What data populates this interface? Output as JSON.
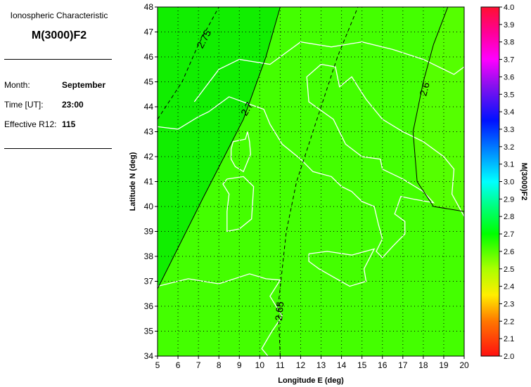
{
  "panel": {
    "caption": "Ionospheric Characteristic",
    "parameter": "M(3000)F2",
    "fields": [
      {
        "label": "Month:",
        "value": "September"
      },
      {
        "label": "Time [UT]:",
        "value": "23:00"
      },
      {
        "label": "Effective R12:",
        "value": "115"
      }
    ]
  },
  "chart_data": {
    "type": "heatmap",
    "xlabel": "Longitude E (deg)",
    "ylabel": "Latitude N (deg)",
    "xlim": [
      5,
      20
    ],
    "ylim": [
      34,
      48
    ],
    "xticks": [
      "5",
      "6",
      "7",
      "8",
      "9",
      "10",
      "11",
      "12",
      "13",
      "14",
      "15",
      "16",
      "17",
      "18",
      "19",
      "20"
    ],
    "yticks": [
      "34",
      "35",
      "36",
      "37",
      "38",
      "39",
      "40",
      "41",
      "42",
      "43",
      "44",
      "45",
      "46",
      "47",
      "48"
    ],
    "grid": true,
    "colorbar": {
      "label": "M(3000)F2",
      "range": [
        2.0,
        4.0
      ],
      "ticks": [
        "2.0",
        "2.1",
        "2.2",
        "2.3",
        "2.4",
        "2.5",
        "2.6",
        "2.7",
        "2.8",
        "2.9",
        "3.0",
        "3.1",
        "3.2",
        "3.3",
        "3.4",
        "3.5",
        "3.6",
        "3.7",
        "3.8",
        "3.9",
        "4.0"
      ],
      "stops": [
        [
          2.0,
          "#ff1010"
        ],
        [
          2.2,
          "#ff7700"
        ],
        [
          2.35,
          "#ffee00"
        ],
        [
          2.5,
          "#aaff00"
        ],
        [
          2.7,
          "#00ff00"
        ],
        [
          2.85,
          "#00ff77"
        ],
        [
          3.0,
          "#00ffff"
        ],
        [
          3.15,
          "#0099ff"
        ],
        [
          3.35,
          "#0011ff"
        ],
        [
          3.55,
          "#8811ee"
        ],
        [
          3.7,
          "#ff00ff"
        ],
        [
          3.85,
          "#ff0099"
        ],
        [
          4.0,
          "#ff1030"
        ]
      ]
    },
    "regions": [
      {
        "range": "2.7-2.75",
        "color": "#11ee00"
      },
      {
        "range": "2.6-2.7",
        "color": "#44ff00"
      },
      {
        "range": "<2.6",
        "color": "#55ff00"
      }
    ],
    "contours": [
      {
        "level": "2.75",
        "style": "dashed",
        "points": [
          [
            5,
            43.5
          ],
          [
            6.2,
            45
          ],
          [
            7.0,
            46.5
          ],
          [
            8.0,
            48
          ]
        ]
      },
      {
        "level": "2.7",
        "style": "solid",
        "points": [
          [
            5,
            36.7
          ],
          [
            7.2,
            40.3
          ],
          [
            9.2,
            43.5
          ],
          [
            10.3,
            46
          ],
          [
            11,
            48
          ]
        ]
      },
      {
        "level": "2.65",
        "style": "dashed",
        "points": [
          [
            11,
            34
          ],
          [
            10.9,
            36
          ],
          [
            11.3,
            39
          ],
          [
            11.8,
            41
          ],
          [
            12.8,
            43.5
          ],
          [
            13.8,
            46
          ],
          [
            14.8,
            48
          ]
        ]
      },
      {
        "level": "2.6",
        "style": "solid",
        "points": [
          [
            19.2,
            48
          ],
          [
            18.5,
            46.5
          ],
          [
            18,
            45
          ],
          [
            17.5,
            43
          ],
          [
            17.7,
            41
          ],
          [
            18.5,
            40
          ],
          [
            20,
            39.8
          ]
        ]
      }
    ]
  }
}
